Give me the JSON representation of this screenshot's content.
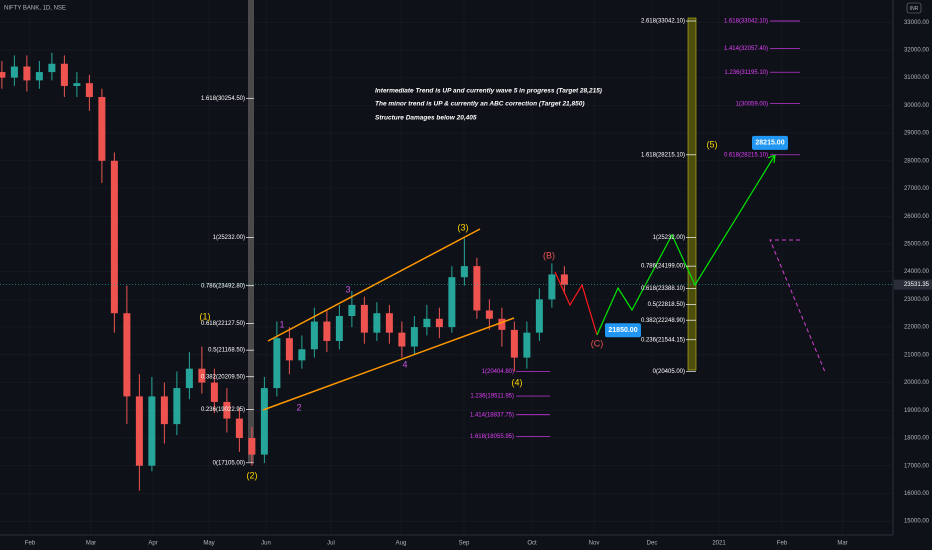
{
  "chart_data": {
    "type": "candlestick",
    "title": "NIFTY BANK, 1D, NSE",
    "currency": "INR",
    "notes": [
      "Intermediate Trend is UP and currently  wave 5 in progress (Target 28,215)",
      "The minor trend is UP & currently an ABC correction (Target 21,850)",
      "Structure Damages below 20,405"
    ],
    "wave_labels": [
      "(1)",
      "1",
      "2",
      "3",
      "4",
      "(2)",
      "(3)",
      "(4)",
      "(B)",
      "(C)",
      "(5)"
    ],
    "up_color": "#26a69a",
    "down_color": "#ef5350",
    "x": [
      0.55,
      0.75,
      0.95,
      1.15,
      1.35,
      1.55,
      1.75,
      1.95,
      2.15,
      2.35,
      2.55,
      2.75,
      2.95,
      3.15,
      3.35,
      3.55,
      3.75,
      3.95,
      4.15,
      4.35,
      4.55,
      4.75,
      4.95,
      5.15,
      5.35,
      5.55,
      5.75,
      5.95,
      6.15,
      6.35,
      6.55,
      6.75,
      6.95,
      7.15,
      7.35,
      7.55,
      7.75,
      7.95,
      8.15,
      8.35,
      8.55,
      8.75,
      8.95,
      9.15,
      9.35,
      9.55
    ],
    "open": [
      31200,
      31000,
      31400,
      30900,
      31200,
      31500,
      30700,
      30800,
      30300,
      28000,
      22500,
      19500,
      17000,
      19500,
      18500,
      19800,
      20500,
      20000,
      19300,
      18700,
      18000,
      17400,
      19800,
      21600,
      20800,
      21200,
      22200,
      21500,
      22400,
      22800,
      21800,
      22500,
      21800,
      21300,
      22000,
      22300,
      22000,
      23800,
      24200,
      22600,
      22300,
      21900,
      20900,
      21800,
      23000,
      23900
    ],
    "high": [
      31600,
      31800,
      31800,
      31600,
      31900,
      31800,
      31200,
      31100,
      30600,
      28300,
      23500,
      20300,
      20200,
      20000,
      20400,
      21100,
      21300,
      20500,
      19800,
      19100,
      18400,
      20200,
      22200,
      22000,
      21700,
      22700,
      22600,
      22800,
      23300,
      23100,
      22900,
      22800,
      22200,
      22400,
      22800,
      22700,
      24200,
      25200,
      24500,
      23000,
      22700,
      22200,
      22200,
      23400,
      24300,
      24200
    ],
    "low": [
      30600,
      30700,
      30500,
      30600,
      30900,
      30300,
      30300,
      29800,
      27200,
      21800,
      18500,
      16100,
      16800,
      17800,
      18100,
      19400,
      19600,
      18900,
      18200,
      17500,
      17000,
      17100,
      19500,
      20300,
      20500,
      20900,
      21100,
      21200,
      22000,
      21400,
      21500,
      21400,
      20900,
      21000,
      21700,
      21600,
      21800,
      23500,
      22300,
      21900,
      21300,
      20400,
      20500,
      21500,
      22700,
      23200
    ],
    "close": [
      31000,
      31400,
      30900,
      31200,
      31500,
      30700,
      30800,
      30300,
      28000,
      22500,
      19500,
      17000,
      19500,
      18500,
      19800,
      20500,
      20000,
      19300,
      18700,
      18000,
      17400,
      19800,
      21600,
      20800,
      21200,
      22200,
      21500,
      22400,
      22800,
      21800,
      22500,
      21800,
      21300,
      22000,
      22300,
      22000,
      23800,
      24200,
      22600,
      22300,
      21900,
      20900,
      21800,
      23000,
      23900,
      23530
    ],
    "last_price": 23531.35,
    "targets": [
      {
        "value": 21850,
        "label": "21850.00"
      },
      {
        "value": 28215,
        "label": "28215.00"
      }
    ],
    "fib_sets": [
      {
        "color": "#ffffff",
        "levels": [
          {
            "value": 30254.5,
            "label": "1.618(30254.50)"
          },
          {
            "value": 25232,
            "label": "1(25232.00)"
          },
          {
            "value": 23492.8,
            "label": "0.786(23492.80)"
          },
          {
            "value": 22127.5,
            "label": "0.618(22127.50)"
          },
          {
            "value": 21168.5,
            "label": "0.5(21168.50)"
          },
          {
            "value": 20209.5,
            "label": "0.382(20209.50)"
          },
          {
            "value": 19022.95,
            "label": "0.236(19022.95)"
          },
          {
            "value": 17105,
            "label": "0(17105.00)"
          }
        ]
      },
      {
        "color": "#ffffff",
        "levels": [
          {
            "value": 33042.1,
            "label": "2.618(33042.10)"
          },
          {
            "value": 28215.1,
            "label": "1.618(28215.10)"
          },
          {
            "value": 25232,
            "label": "1(25232.00)"
          },
          {
            "value": 24199,
            "label": "0.786(24199.00)"
          },
          {
            "value": 23388.1,
            "label": "0.618(23388.10)"
          },
          {
            "value": 22818.5,
            "label": "0.5(22818.50)"
          },
          {
            "value": 22248.9,
            "label": "0.382(22248.90)"
          },
          {
            "value": 21544.15,
            "label": "0.236(21544.15)"
          },
          {
            "value": 20405,
            "label": "0(20405.00)"
          }
        ]
      },
      {
        "color": "#e040fb",
        "levels": [
          {
            "value": 33042.1,
            "label": "1.618(33042.10)"
          },
          {
            "value": 32057.4,
            "label": "1.414(32057.40)"
          },
          {
            "value": 31195.1,
            "label": "1.236(31195.10)"
          },
          {
            "value": 30059,
            "label": "1(30059.00)"
          },
          {
            "value": 28215.1,
            "label": "0.618(28215.10)"
          }
        ]
      },
      {
        "color": "#e040fb",
        "levels": [
          {
            "value": 20404.8,
            "label": "1(20404.80)"
          },
          {
            "value": 19511.95,
            "label": "1.236(19511.95)"
          },
          {
            "value": 18837.75,
            "label": "1.414(18837.75)"
          },
          {
            "value": 18055.95,
            "label": "1.618(18055.95)"
          }
        ]
      }
    ],
    "xlim": [
      0.52,
      14.808
    ],
    "xticks": [
      {
        "value": 1,
        "label": "Feb"
      },
      {
        "value": 1.976,
        "label": "Mar"
      },
      {
        "value": 2.968,
        "label": "Apr"
      },
      {
        "value": 3.864,
        "label": "May"
      },
      {
        "value": 4.776,
        "label": "Jun"
      },
      {
        "value": 5.816,
        "label": "Jul"
      },
      {
        "value": 6.936,
        "label": "Aug"
      },
      {
        "value": 7.944,
        "label": "Sep"
      },
      {
        "value": 9.032,
        "label": "Oct"
      },
      {
        "value": 10.024,
        "label": "Nov"
      },
      {
        "value": 10.952,
        "label": "Dec"
      },
      {
        "value": 12.024,
        "label": "2021"
      },
      {
        "value": 13.032,
        "label": "Feb"
      },
      {
        "value": 14,
        "label": "Mar"
      }
    ],
    "ylim": [
      14500,
      33800
    ],
    "yticks": [
      {
        "value": 15000,
        "label": "15000.00"
      },
      {
        "value": 16000,
        "label": "16000.00"
      },
      {
        "value": 17000,
        "label": "17000.00"
      },
      {
        "value": 18000,
        "label": "18000.00"
      },
      {
        "value": 19000,
        "label": "19000.00"
      },
      {
        "value": 20000,
        "label": "20000.00"
      },
      {
        "value": 21000,
        "label": "21000.00"
      },
      {
        "value": 22000,
        "label": "22000.00"
      },
      {
        "value": 23000,
        "label": "23000.00"
      },
      {
        "value": 24000,
        "label": "24000.00"
      },
      {
        "value": 25000,
        "label": "25000.00"
      },
      {
        "value": 26000,
        "label": "26000.00"
      },
      {
        "value": 27000,
        "label": "27000.00"
      },
      {
        "value": 28000,
        "label": "28000.00"
      },
      {
        "value": 29000,
        "label": "29000.00"
      },
      {
        "value": 30000,
        "label": "30000.00"
      },
      {
        "value": 31000,
        "label": "31000.00"
      },
      {
        "value": 32000,
        "label": "32000.00"
      },
      {
        "value": 33000,
        "label": "33000.00"
      }
    ],
    "grid": true
  }
}
